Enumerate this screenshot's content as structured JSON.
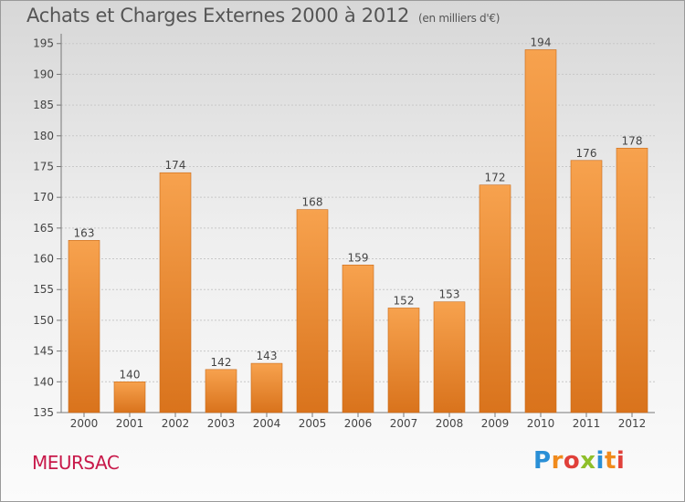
{
  "page": {
    "title": "Achats et Charges Externes 2000 à 2012",
    "unit": "(en milliers d'€)",
    "commune": "MEURSAC",
    "logo_letters": [
      {
        "char": "P",
        "color": "#2a8fd6"
      },
      {
        "char": "r",
        "color": "#f08a1c"
      },
      {
        "char": "o",
        "color": "#e0403a"
      },
      {
        "char": "x",
        "color": "#8fbf2a"
      },
      {
        "char": "i",
        "color": "#2a8fd6"
      },
      {
        "char": "t",
        "color": "#f08a1c"
      },
      {
        "char": "i",
        "color": "#e0403a"
      }
    ]
  },
  "chart_data": {
    "type": "bar",
    "title": "Achats et Charges Externes 2000 à 2012",
    "subtitle": "(en milliers d'€)",
    "categories": [
      "2000",
      "2001",
      "2002",
      "2003",
      "2004",
      "2005",
      "2006",
      "2007",
      "2008",
      "2009",
      "2010",
      "2011",
      "2012"
    ],
    "values": [
      163,
      140,
      174,
      142,
      143,
      168,
      159,
      152,
      153,
      172,
      194,
      176,
      178
    ],
    "ylim": [
      135,
      196
    ],
    "yticks": [
      135,
      140,
      145,
      150,
      155,
      160,
      165,
      170,
      175,
      180,
      185,
      190,
      195
    ],
    "grid": true,
    "bar_color_top": "#f7a24e",
    "bar_color_bottom": "#d9731c",
    "legend": "none"
  }
}
